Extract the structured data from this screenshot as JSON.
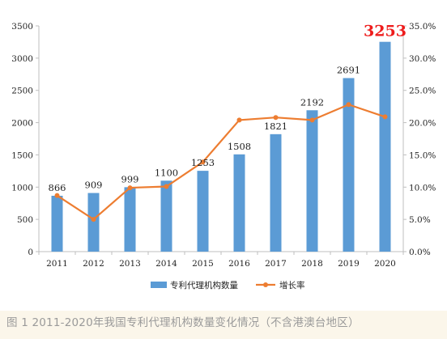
{
  "chart_data": {
    "type": "bar",
    "categories": [
      "2011",
      "2012",
      "2013",
      "2014",
      "2015",
      "2016",
      "2017",
      "2018",
      "2019",
      "2020"
    ],
    "series": [
      {
        "name": "专利代理机构数量",
        "type": "bar",
        "axis": "left",
        "color": "#5b9bd5",
        "values": [
          866,
          909,
          999,
          1100,
          1253,
          1508,
          1821,
          2192,
          2691,
          3253
        ],
        "labels": [
          "866",
          "909",
          "999",
          "1100",
          "1253",
          "1508",
          "1821",
          "2192",
          "2691",
          "3253"
        ]
      },
      {
        "name": "增长率",
        "type": "line",
        "axis": "right",
        "color": "#ed7d31",
        "values": [
          8.7,
          5.0,
          9.9,
          10.1,
          13.9,
          20.4,
          20.8,
          20.4,
          22.8,
          20.9
        ]
      }
    ],
    "y_left": {
      "range": [
        0,
        3500
      ],
      "ticks": [
        0,
        500,
        1000,
        1500,
        2000,
        2500,
        3000,
        3500
      ],
      "tick_labels": [
        "0",
        "500",
        "1000",
        "1500",
        "2000",
        "2500",
        "3000",
        "3500"
      ]
    },
    "y_right": {
      "range": [
        0,
        35
      ],
      "ticks": [
        0,
        5,
        10,
        15,
        20,
        25,
        30,
        35
      ],
      "tick_labels": [
        "0.0%",
        "5.0%",
        "10.0%",
        "15.0%",
        "20.0%",
        "25.0%",
        "30.0%",
        "35.0%"
      ]
    },
    "highlight_label_index": 9,
    "highlight_color": "#ee1c1c",
    "grid": false,
    "legend": "bottom"
  },
  "caption": "图 1 2011-2020年我国专利代理机构数量变化情况（不含港澳台地区）"
}
